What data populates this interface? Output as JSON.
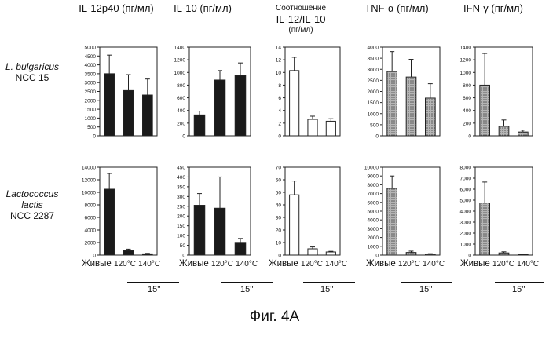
{
  "headers": {
    "il12p40": "IL-12p40 (пг/мл)",
    "il10": "IL-10 (пг/мл)",
    "ratio_line1": "Соотношение",
    "ratio_line2": "IL-12/IL-10",
    "ratio_line3": "(пг/мл)",
    "tnf": "TNF-α (пг/мл)",
    "ifn": "IFN-γ (пг/мл)"
  },
  "rows": [
    {
      "species": "L. bulgaricus",
      "strain": "NCC 15"
    },
    {
      "species": "Lactococcus",
      "species2": "lactis",
      "strain": "NCC 2287"
    }
  ],
  "x_labels": {
    "live": "Живые",
    "t120": "120°C",
    "t140": "140°C"
  },
  "time_labels": [
    "15''",
    "15''",
    "15''",
    "15''",
    "15''"
  ],
  "figure_caption": "Фиг. 4A",
  "colors": {
    "dark": "#1a1a1a",
    "open": "#ffffff",
    "hatched": "#9a9a9a"
  },
  "chart_data": [
    {
      "type": "bar",
      "id": "il12-r1",
      "categories": [
        "Живые",
        "120°C",
        "140°C"
      ],
      "values": [
        3500,
        2550,
        2300
      ],
      "errors": [
        1050,
        900,
        900
      ],
      "ylim": [
        0,
        5000
      ],
      "ticks": [
        0,
        500,
        1000,
        1500,
        2000,
        2500,
        3000,
        3500,
        4000,
        4500,
        5000
      ],
      "fill": "dark"
    },
    {
      "type": "bar",
      "id": "il10-r1",
      "categories": [
        "Живые",
        "120°C",
        "140°C"
      ],
      "values": [
        330,
        880,
        950
      ],
      "errors": [
        60,
        150,
        200
      ],
      "ylim": [
        0,
        1400
      ],
      "ticks": [
        0,
        200,
        400,
        600,
        800,
        1000,
        1200,
        1400
      ],
      "fill": "dark"
    },
    {
      "type": "bar",
      "id": "ratio-r1",
      "categories": [
        "Живые",
        "120°C",
        "140°C"
      ],
      "values": [
        10.3,
        2.6,
        2.3
      ],
      "errors": [
        2.1,
        0.5,
        0.4
      ],
      "ylim": [
        0,
        14
      ],
      "ticks": [
        0,
        2,
        4,
        6,
        8,
        10,
        12,
        14
      ],
      "fill": "open"
    },
    {
      "type": "bar",
      "id": "tnf-r1",
      "categories": [
        "Живые",
        "120°C",
        "140°C"
      ],
      "values": [
        2900,
        2650,
        1700
      ],
      "errors": [
        900,
        800,
        650
      ],
      "ylim": [
        0,
        4000
      ],
      "ticks": [
        0,
        500,
        1000,
        1500,
        2000,
        2500,
        3000,
        3500,
        4000
      ],
      "fill": "hatched"
    },
    {
      "type": "bar",
      "id": "ifn-r1",
      "categories": [
        "Живые",
        "120°C",
        "140°C"
      ],
      "values": [
        800,
        150,
        60
      ],
      "errors": [
        500,
        100,
        30
      ],
      "ylim": [
        0,
        1400
      ],
      "ticks": [
        0,
        200,
        400,
        600,
        800,
        1000,
        1200,
        1400
      ],
      "fill": "hatched"
    },
    {
      "type": "bar",
      "id": "il12-r2",
      "categories": [
        "Живые",
        "120°C",
        "140°C"
      ],
      "values": [
        10500,
        700,
        200
      ],
      "errors": [
        2500,
        250,
        80
      ],
      "ylim": [
        0,
        14000
      ],
      "ticks": [
        0,
        2000,
        4000,
        6000,
        8000,
        10000,
        12000,
        14000
      ],
      "fill": "dark"
    },
    {
      "type": "bar",
      "id": "il10-r2",
      "categories": [
        "Живые",
        "120°C",
        "140°C"
      ],
      "values": [
        255,
        240,
        65
      ],
      "errors": [
        60,
        160,
        20
      ],
      "ylim": [
        0,
        450
      ],
      "ticks": [
        0,
        50,
        100,
        150,
        200,
        250,
        300,
        350,
        400,
        450
      ],
      "fill": "dark"
    },
    {
      "type": "bar",
      "id": "ratio-r2",
      "categories": [
        "Живые",
        "120°C",
        "140°C"
      ],
      "values": [
        48,
        5,
        2.5
      ],
      "errors": [
        11,
        1.5,
        0.5
      ],
      "ylim": [
        0,
        70
      ],
      "ticks": [
        0,
        10,
        20,
        30,
        40,
        50,
        60,
        70
      ],
      "fill": "open"
    },
    {
      "type": "bar",
      "id": "tnf-r2",
      "categories": [
        "Живые",
        "120°C",
        "140°C"
      ],
      "values": [
        7600,
        300,
        100
      ],
      "errors": [
        1400,
        150,
        60
      ],
      "ylim": [
        0,
        10000
      ],
      "ticks": [
        0,
        1000,
        2000,
        3000,
        4000,
        5000,
        6000,
        7000,
        8000,
        9000,
        10000
      ],
      "fill": "hatched"
    },
    {
      "type": "bar",
      "id": "ifn-r2",
      "categories": [
        "Живые",
        "120°C",
        "140°C"
      ],
      "values": [
        4750,
        200,
        60
      ],
      "errors": [
        1900,
        100,
        30
      ],
      "ylim": [
        0,
        8000
      ],
      "ticks": [
        0,
        1000,
        2000,
        3000,
        4000,
        5000,
        6000,
        7000,
        8000
      ],
      "fill": "hatched"
    }
  ]
}
